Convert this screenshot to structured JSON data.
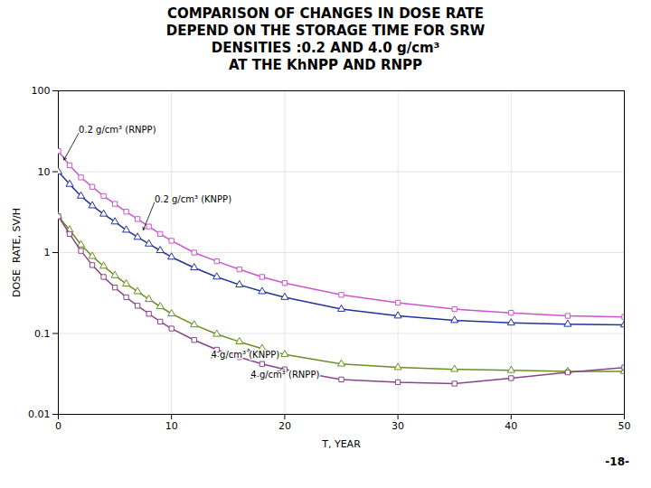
{
  "chart_data": {
    "type": "line",
    "title": "COMPARISON OF CHANGES IN DOSE RATE\nDEPEND ON THE STORAGE TIME FOR SRW\nDENSITIES :0.2 AND 4.0 g/cm³\nAT THE KhNPP AND RNPP",
    "x_label": "T, YEAR",
    "y_label": "DOSE  RATE, SV/H",
    "caption": "-18-",
    "log": "y",
    "grid": true,
    "xlim": [
      0,
      50
    ],
    "xticks": [
      0,
      10,
      20,
      30,
      40,
      50
    ],
    "ylim": [
      0.01,
      100
    ],
    "yticks": [
      0.01,
      0.1,
      1,
      10,
      100
    ],
    "x": [
      0,
      1,
      2,
      3,
      4,
      5,
      6,
      7,
      8,
      9,
      10,
      12,
      14,
      16,
      18,
      20,
      25,
      30,
      35,
      40,
      45,
      50
    ],
    "series": [
      {
        "color": "#cc55cc",
        "marker": "square",
        "values": [
          18,
          12,
          8.5,
          6.5,
          5.0,
          4.0,
          3.2,
          2.6,
          2.1,
          1.7,
          1.4,
          1.0,
          0.78,
          0.62,
          0.5,
          0.42,
          0.3,
          0.24,
          0.2,
          0.18,
          0.165,
          0.16
        ]
      },
      {
        "color": "#223399",
        "marker": "triangle",
        "values": [
          10,
          7.0,
          5.0,
          3.8,
          3.0,
          2.4,
          1.9,
          1.55,
          1.28,
          1.06,
          0.88,
          0.65,
          0.5,
          0.4,
          0.33,
          0.28,
          0.2,
          0.165,
          0.145,
          0.135,
          0.13,
          0.128
        ]
      },
      {
        "color": "#6b8e23",
        "marker": "triangle",
        "values": [
          2.8,
          1.9,
          1.25,
          0.9,
          0.68,
          0.52,
          0.41,
          0.33,
          0.265,
          0.215,
          0.175,
          0.128,
          0.098,
          0.079,
          0.065,
          0.055,
          0.042,
          0.038,
          0.036,
          0.035,
          0.034,
          0.034
        ]
      },
      {
        "color": "#884488",
        "marker": "square",
        "values": [
          2.8,
          1.7,
          1.05,
          0.7,
          0.5,
          0.37,
          0.28,
          0.22,
          0.175,
          0.14,
          0.115,
          0.083,
          0.063,
          0.051,
          0.042,
          0.036,
          0.027,
          0.025,
          0.024,
          0.028,
          0.033,
          0.038
        ]
      }
    ],
    "annotations": [
      {
        "text": "0.2 g/cm³ (RNPP)",
        "x": 0.5,
        "y": 14,
        "text_x": 1.8,
        "text_y": 30
      },
      {
        "text": "0.2 g/cm³ (KNPP)",
        "x": 7.5,
        "y": 1.9,
        "text_x": 8.5,
        "text_y": 4.2
      },
      {
        "text": "4 g/cm³ (KNPP)",
        "x": 17.0,
        "y": 0.062,
        "text_x": 13.5,
        "text_y": 0.05
      },
      {
        "text": "4 g/cm³ (RNPP)",
        "x": 20.0,
        "y": 0.036,
        "text_x": 17.0,
        "text_y": 0.028
      }
    ]
  }
}
